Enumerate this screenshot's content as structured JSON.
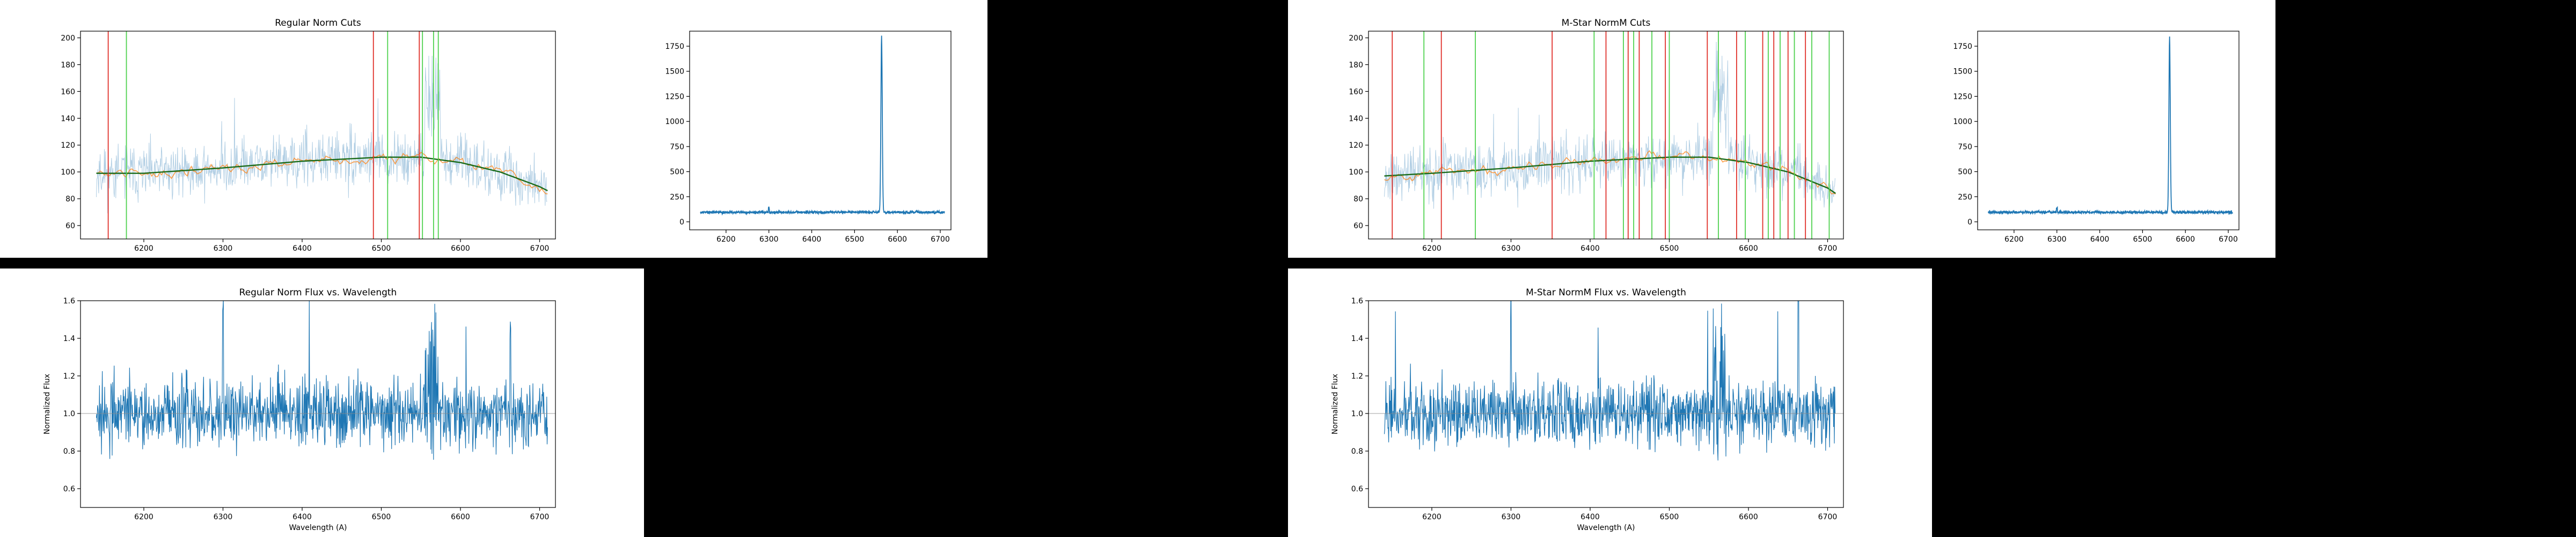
{
  "colors": {
    "raw": "#a6c8e0",
    "smooth": "#ff7f0e",
    "fit": "#2ca02c",
    "fit_dark": "#1a6b1a",
    "spectrum": "#1f77b4",
    "cut_red": "#e0302a",
    "cut_green": "#4fd24f",
    "background": "#000000"
  },
  "chart_data": [
    {
      "type": "line",
      "title": "Regular Norm Cuts",
      "xlabel": "",
      "ylabel": "",
      "xlim": [
        6120,
        6720
      ],
      "ylim": [
        50,
        205
      ],
      "xticks": [
        "6200",
        "6300",
        "6400",
        "6500",
        "6600",
        "6700"
      ],
      "yticks": [
        "60",
        "80",
        "100",
        "120",
        "140",
        "160",
        "180",
        "200"
      ],
      "series": [
        {
          "role": "raw",
          "x_range": [
            6140,
            6710
          ],
          "level": 100,
          "noise": 14
        },
        {
          "role": "smooth",
          "x_range": [
            6140,
            6710
          ],
          "level": 100,
          "noise": 5
        },
        {
          "role": "fit",
          "x": [
            6140,
            6200,
            6300,
            6400,
            6500,
            6550,
            6600,
            6650,
            6700,
            6710
          ],
          "y": [
            99,
            99,
            103,
            108,
            111,
            111,
            107,
            100,
            89,
            86
          ]
        }
      ],
      "cut_lines": [
        {
          "x": 6155,
          "color": "red"
        },
        {
          "x": 6178,
          "color": "green"
        },
        {
          "x": 6490,
          "color": "red"
        },
        {
          "x": 6508,
          "color": "green"
        },
        {
          "x": 6548,
          "color": "red"
        },
        {
          "x": 6552,
          "color": "green"
        },
        {
          "x": 6566,
          "color": "green"
        },
        {
          "x": 6572,
          "color": "green"
        }
      ],
      "grid": false
    },
    {
      "type": "line",
      "title": "",
      "xlabel": "",
      "ylabel": "",
      "xlim": [
        6115,
        6725
      ],
      "ylim": [
        -80,
        1900
      ],
      "xticks": [
        "6200",
        "6300",
        "6400",
        "6500",
        "6600",
        "6700"
      ],
      "yticks": [
        "0",
        "250",
        "500",
        "750",
        "1000",
        "1250",
        "1500",
        "1750"
      ],
      "series": [
        {
          "role": "spectrum",
          "x_range": [
            6140,
            6710
          ],
          "baseline": 95,
          "noise": 10,
          "peak_x": 6563,
          "peak_y": 1840
        }
      ],
      "grid": false
    },
    {
      "type": "line",
      "title": "M-Star NormM Cuts",
      "xlabel": "",
      "ylabel": "",
      "xlim": [
        6120,
        6720
      ],
      "ylim": [
        50,
        205
      ],
      "xticks": [
        "6200",
        "6300",
        "6400",
        "6500",
        "6600",
        "6700"
      ],
      "yticks": [
        "60",
        "80",
        "100",
        "120",
        "140",
        "160",
        "180",
        "200"
      ],
      "series": [
        {
          "role": "raw",
          "x_range": [
            6140,
            6710
          ],
          "level": 100,
          "noise": 14
        },
        {
          "role": "smooth",
          "x_range": [
            6140,
            6710
          ],
          "level": 100,
          "noise": 5
        },
        {
          "role": "fit",
          "x": [
            6140,
            6200,
            6300,
            6400,
            6500,
            6550,
            6600,
            6650,
            6700,
            6710
          ],
          "y": [
            97,
            99,
            103,
            108,
            111,
            111,
            107,
            100,
            88,
            84
          ]
        }
      ],
      "cut_lines": [
        {
          "x": 6150,
          "color": "red"
        },
        {
          "x": 6190,
          "color": "green"
        },
        {
          "x": 6212,
          "color": "red"
        },
        {
          "x": 6255,
          "color": "green"
        },
        {
          "x": 6352,
          "color": "red"
        },
        {
          "x": 6405,
          "color": "green"
        },
        {
          "x": 6420,
          "color": "red"
        },
        {
          "x": 6442,
          "color": "green"
        },
        {
          "x": 6448,
          "color": "red"
        },
        {
          "x": 6455,
          "color": "green"
        },
        {
          "x": 6462,
          "color": "red"
        },
        {
          "x": 6478,
          "color": "green"
        },
        {
          "x": 6495,
          "color": "red"
        },
        {
          "x": 6500,
          "color": "green"
        },
        {
          "x": 6548,
          "color": "red"
        },
        {
          "x": 6562,
          "color": "green"
        },
        {
          "x": 6585,
          "color": "red"
        },
        {
          "x": 6596,
          "color": "green"
        },
        {
          "x": 6618,
          "color": "red"
        },
        {
          "x": 6625,
          "color": "green"
        },
        {
          "x": 6632,
          "color": "red"
        },
        {
          "x": 6640,
          "color": "green"
        },
        {
          "x": 6650,
          "color": "red"
        },
        {
          "x": 6658,
          "color": "green"
        },
        {
          "x": 6672,
          "color": "red"
        },
        {
          "x": 6680,
          "color": "green"
        },
        {
          "x": 6702,
          "color": "green"
        }
      ],
      "grid": false
    },
    {
      "type": "line",
      "title": "",
      "xlabel": "",
      "ylabel": "",
      "xlim": [
        6115,
        6725
      ],
      "ylim": [
        -80,
        1900
      ],
      "xticks": [
        "6200",
        "6300",
        "6400",
        "6500",
        "6600",
        "6700"
      ],
      "yticks": [
        "0",
        "250",
        "500",
        "750",
        "1000",
        "1250",
        "1500",
        "1750"
      ],
      "series": [
        {
          "role": "spectrum",
          "x_range": [
            6140,
            6710
          ],
          "baseline": 95,
          "noise": 10,
          "peak_x": 6563,
          "peak_y": 1840
        }
      ],
      "grid": false
    },
    {
      "type": "line",
      "title": "Regular Norm Flux vs. Wavelength",
      "xlabel": "Wavelength (A)",
      "ylabel": "Normalized Flux",
      "xlim": [
        6120,
        6720
      ],
      "ylim": [
        0.5,
        1.6
      ],
      "xticks": [
        "6200",
        "6300",
        "6400",
        "6500",
        "6600",
        "6700"
      ],
      "yticks": [
        "0.6",
        "0.8",
        "1.0",
        "1.2",
        "1.4",
        "1.6"
      ],
      "series": [
        {
          "role": "spectrum",
          "x_range": [
            6140,
            6710
          ],
          "level": 1.0,
          "noise": 0.13,
          "gap": [
            6555,
            6572
          ]
        }
      ],
      "reference_line": 1.0,
      "grid": false
    },
    {
      "type": "line",
      "title": "M-Star NormM Flux vs. Wavelength",
      "xlabel": "Wavelength (A)",
      "ylabel": "Normalized Flux",
      "xlim": [
        6120,
        6720
      ],
      "ylim": [
        0.5,
        1.6
      ],
      "xticks": [
        "6200",
        "6300",
        "6400",
        "6500",
        "6600",
        "6700"
      ],
      "yticks": [
        "0.6",
        "0.8",
        "1.0",
        "1.2",
        "1.4",
        "1.6"
      ],
      "series": [
        {
          "role": "spectrum",
          "x_range": [
            6140,
            6710
          ],
          "level": 1.0,
          "noise": 0.13,
          "gap": [
            6555,
            6572
          ]
        }
      ],
      "reference_line": 1.0,
      "grid": false
    }
  ]
}
